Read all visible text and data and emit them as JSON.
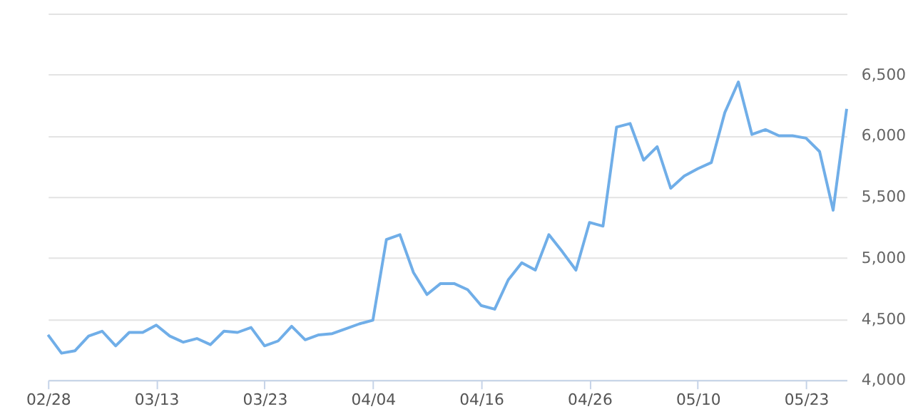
{
  "chart_data": {
    "type": "line",
    "categories": [
      "02/28",
      null,
      null,
      null,
      null,
      null,
      null,
      null,
      "03/13",
      null,
      null,
      null,
      null,
      null,
      null,
      null,
      "03/23",
      null,
      null,
      null,
      null,
      null,
      null,
      null,
      "04/04",
      null,
      null,
      null,
      null,
      null,
      null,
      null,
      "04/16",
      null,
      null,
      null,
      null,
      null,
      null,
      null,
      "04/26",
      null,
      null,
      null,
      null,
      null,
      null,
      null,
      "05/10",
      null,
      null,
      null,
      null,
      null,
      null,
      null,
      "05/23",
      null,
      null,
      null
    ],
    "series": [
      {
        "color": "#70aee8",
        "values": [
          4370,
          4220,
          4240,
          4360,
          4400,
          4280,
          4390,
          4390,
          4450,
          4360,
          4310,
          4340,
          4290,
          4400,
          4390,
          4430,
          4280,
          4320,
          4440,
          4330,
          4370,
          4380,
          4420,
          4460,
          4490,
          5150,
          5190,
          4880,
          4700,
          4790,
          4790,
          4740,
          4610,
          4580,
          4820,
          4960,
          4900,
          5190,
          5050,
          4900,
          5290,
          5260,
          6070,
          6100,
          5800,
          5910,
          5570,
          5670,
          5730,
          5780,
          6190,
          6440,
          6010,
          6050,
          6000,
          6000,
          5980,
          5870,
          5390,
          6220
        ]
      }
    ],
    "ylim": [
      4000,
      7000
    ],
    "yticks": [
      {
        "value": 4000,
        "label": "4,000"
      },
      {
        "value": 4500,
        "label": "4,500"
      },
      {
        "value": 5000,
        "label": "5,000"
      },
      {
        "value": 5500,
        "label": "5,500"
      },
      {
        "value": 6000,
        "label": "6,000"
      },
      {
        "value": 6500,
        "label": "6,500"
      },
      {
        "value": 7000,
        "label": null
      }
    ],
    "grid": "y",
    "legend": false,
    "marker": "none",
    "line_style": "solid"
  }
}
